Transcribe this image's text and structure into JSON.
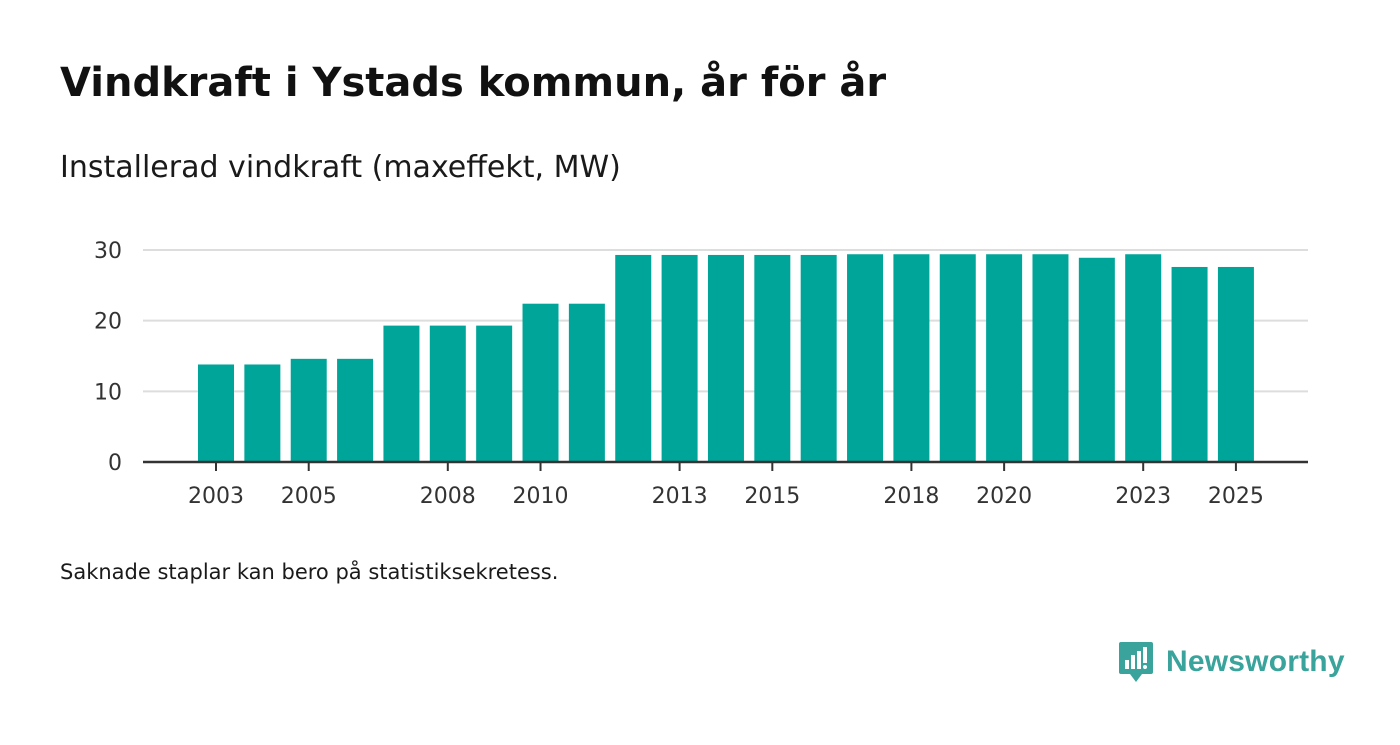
{
  "header": {
    "title": "Vindkraft i Ystads kommun, år för år",
    "subtitle": "Installerad vindkraft (maxeffekt, MW)"
  },
  "footnote": "Saknade staplar kan bero på statistiksekretess.",
  "brand": {
    "name": "Newsworthy",
    "icon": "newsworthy-logo-icon"
  },
  "colors": {
    "bar": "#00a59a",
    "grid": "#dddddd",
    "axis": "#333333",
    "brand": "#3aa39b"
  },
  "chart_data": {
    "type": "bar",
    "title": "Vindkraft i Ystads kommun, år för år",
    "ylabel": "Installerad vindkraft (maxeffekt, MW)",
    "xlabel": "",
    "categories": [
      "2003",
      "2004",
      "2005",
      "2006",
      "2007",
      "2008",
      "2009",
      "2010",
      "2011",
      "2012",
      "2013",
      "2014",
      "2015",
      "2016",
      "2017",
      "2018",
      "2019",
      "2020",
      "2021",
      "2022",
      "2023",
      "2024",
      "2025"
    ],
    "values": [
      13.8,
      13.8,
      14.6,
      14.6,
      19.3,
      19.3,
      19.3,
      22.4,
      22.4,
      29.3,
      29.3,
      29.3,
      29.3,
      29.3,
      29.4,
      29.4,
      29.4,
      29.4,
      29.4,
      28.9,
      29.4,
      27.6,
      27.6
    ],
    "ylim": [
      0,
      30
    ],
    "yticks": [
      0,
      10,
      20,
      30
    ],
    "xtick_labels": [
      "2003",
      "2005",
      "2008",
      "2010",
      "2013",
      "2015",
      "2018",
      "2020",
      "2023",
      "2025"
    ],
    "grid": true,
    "legend": "none"
  }
}
